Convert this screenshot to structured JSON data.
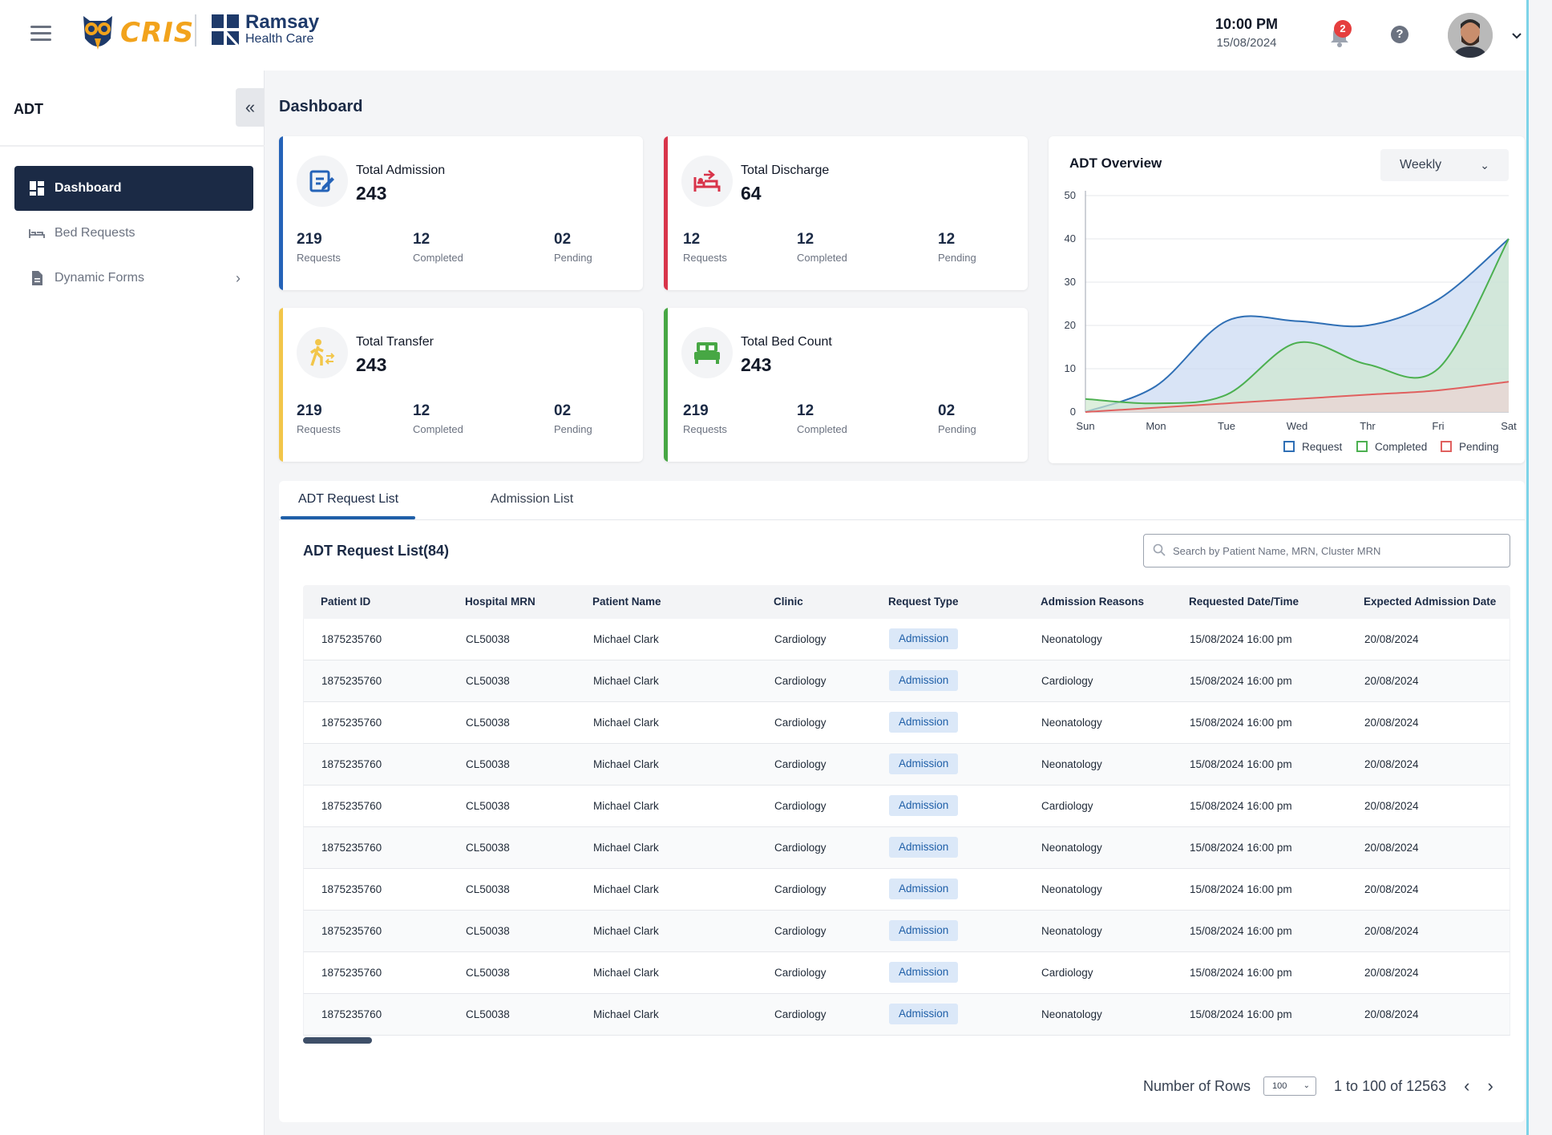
{
  "header": {
    "app_logo_text": "CRIS",
    "brand_name": "Ramsay",
    "brand_sub": "Health Care",
    "time": "10:00 PM",
    "date": "15/08/2024",
    "notification_count": "2",
    "help_symbol": "?"
  },
  "sidebar": {
    "title": "ADT",
    "collapse_symbol": "«",
    "items": [
      {
        "label": "Dashboard",
        "icon": "dashboard-icon",
        "active": true
      },
      {
        "label": "Bed Requests",
        "icon": "bed-icon"
      },
      {
        "label": "Dynamic Forms",
        "icon": "document-icon",
        "has_submenu": true
      }
    ]
  },
  "main": {
    "title": "Dashboard",
    "cards": [
      {
        "label": "Total Admission",
        "total": "243",
        "accent": "#2563b8",
        "requests": "219",
        "completed": "12",
        "pending": "02"
      },
      {
        "label": "Total Discharge",
        "total": "64",
        "accent": "#d8344a",
        "requests": "12",
        "completed": "12",
        "pending": "12"
      },
      {
        "label": "Total Transfer",
        "total": "243",
        "accent": "#f2c64a",
        "requests": "219",
        "completed": "12",
        "pending": "02"
      },
      {
        "label": "Total Bed Count",
        "total": "243",
        "accent": "#47a744",
        "requests": "219",
        "completed": "12",
        "pending": "02"
      }
    ],
    "sub_labels": {
      "requests": "Requests",
      "completed": "Completed",
      "pending": "Pending"
    }
  },
  "chart_data": {
    "type": "area",
    "title": "ADT Overview",
    "period": "Weekly",
    "categories": [
      "Sun",
      "Mon",
      "Tue",
      "Wed",
      "Thr",
      "Fri",
      "Sat"
    ],
    "ylim": [
      0,
      50
    ],
    "yticks": [
      0,
      10,
      20,
      30,
      40,
      50
    ],
    "grid": true,
    "legend": "bottom-right",
    "series": [
      {
        "name": "Request",
        "color": "#2f6fb5",
        "fill": "#c9d9f2",
        "values": [
          0,
          6,
          21,
          21,
          20,
          26,
          40
        ]
      },
      {
        "name": "Completed",
        "color": "#4cb050",
        "fill": "#cfe8cf",
        "values": [
          3,
          2,
          4,
          16,
          11,
          10,
          40
        ]
      },
      {
        "name": "Pending",
        "color": "#e0605f",
        "fill": "#ecd3d3",
        "values": [
          0,
          1,
          2,
          3,
          4,
          5,
          7
        ]
      }
    ]
  },
  "list": {
    "tabs": [
      "ADT Request List",
      "Admission List"
    ],
    "title": "ADT Request List(84)",
    "search_placeholder": "Search by Patient Name, MRN, Cluster MRN",
    "columns": [
      "Patient ID",
      "Hospital MRN",
      "Patient Name",
      "Clinic",
      "Request Type",
      "Admission Reasons",
      "Requested Date/Time",
      "Expected Admission Date"
    ],
    "rows": [
      [
        "1875235760",
        "CL50038",
        "Michael Clark",
        "Cardiology",
        "Admission",
        "Neonatology",
        "15/08/2024 16:00 pm",
        "20/08/2024"
      ],
      [
        "1875235760",
        "CL50038",
        "Michael Clark",
        "Cardiology",
        "Admission",
        "Cardiology",
        "15/08/2024 16:00 pm",
        "20/08/2024"
      ],
      [
        "1875235760",
        "CL50038",
        "Michael Clark",
        "Cardiology",
        "Admission",
        "Neonatology",
        "15/08/2024 16:00 pm",
        "20/08/2024"
      ],
      [
        "1875235760",
        "CL50038",
        "Michael Clark",
        "Cardiology",
        "Admission",
        "Neonatology",
        "15/08/2024 16:00 pm",
        "20/08/2024"
      ],
      [
        "1875235760",
        "CL50038",
        "Michael Clark",
        "Cardiology",
        "Admission",
        "Cardiology",
        "15/08/2024 16:00 pm",
        "20/08/2024"
      ],
      [
        "1875235760",
        "CL50038",
        "Michael Clark",
        "Cardiology",
        "Admission",
        "Neonatology",
        "15/08/2024 16:00 pm",
        "20/08/2024"
      ],
      [
        "1875235760",
        "CL50038",
        "Michael Clark",
        "Cardiology",
        "Admission",
        "Neonatology",
        "15/08/2024 16:00 pm",
        "20/08/2024"
      ],
      [
        "1875235760",
        "CL50038",
        "Michael Clark",
        "Cardiology",
        "Admission",
        "Neonatology",
        "15/08/2024 16:00 pm",
        "20/08/2024"
      ],
      [
        "1875235760",
        "CL50038",
        "Michael Clark",
        "Cardiology",
        "Admission",
        "Cardiology",
        "15/08/2024 16:00 pm",
        "20/08/2024"
      ],
      [
        "1875235760",
        "CL50038",
        "Michael Clark",
        "Cardiology",
        "Admission",
        "Neonatology",
        "15/08/2024 16:00 pm",
        "20/08/2024"
      ]
    ],
    "pagination": {
      "rows_label": "Number of Rows",
      "rows_value": "100",
      "range": "1 to 100 of 12563",
      "prev_symbol": "‹",
      "next_symbol": "›"
    }
  }
}
